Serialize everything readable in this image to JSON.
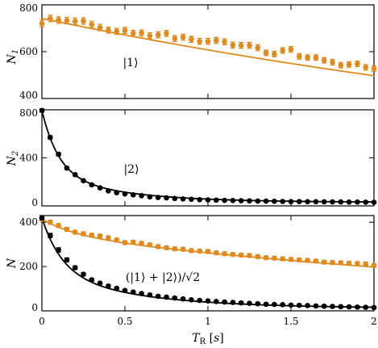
{
  "chart_data": [
    {
      "type": "scatter",
      "panel": "top",
      "ylabel": "N1",
      "ylim": [
        400,
        800
      ],
      "yticks": [
        400,
        600,
        800
      ],
      "xlim": [
        0,
        2
      ],
      "annotation": "|1⟩",
      "series": [
        {
          "color": "#E08A1E",
          "marker": "filled-circle",
          "errorbars": true,
          "x": [
            0,
            0.05,
            0.1,
            0.15,
            0.2,
            0.25,
            0.3,
            0.35,
            0.4,
            0.45,
            0.5,
            0.55,
            0.6,
            0.65,
            0.7,
            0.75,
            0.8,
            0.85,
            0.9,
            0.95,
            1.0,
            1.05,
            1.1,
            1.15,
            1.2,
            1.25,
            1.3,
            1.35,
            1.4,
            1.45,
            1.5,
            1.55,
            1.6,
            1.65,
            1.7,
            1.75,
            1.8,
            1.85,
            1.9,
            1.95,
            2.0
          ],
          "y": [
            720,
            742,
            735,
            733,
            730,
            731,
            716,
            703,
            692,
            687,
            691,
            678,
            680,
            668,
            672,
            678,
            656,
            662,
            653,
            644,
            644,
            648,
            642,
            628,
            627,
            627,
            617,
            595,
            590,
            605,
            610,
            580,
            575,
            575,
            563,
            555,
            542,
            545,
            548,
            533,
            528
          ],
          "yerr": [
            14,
            14,
            14,
            14,
            14,
            14,
            14,
            14,
            13,
            13,
            13,
            13,
            13,
            13,
            13,
            13,
            13,
            13,
            13,
            13,
            13,
            13,
            13,
            13,
            13,
            13,
            13,
            12,
            12,
            12,
            12,
            12,
            12,
            12,
            12,
            12,
            12,
            12,
            12,
            12,
            12
          ]
        }
      ],
      "fit": {
        "color": "#E08A1E",
        "model": "exponential",
        "y0": 742,
        "tau": 5.0
      }
    },
    {
      "type": "scatter",
      "panel": "middle",
      "ylabel": "N2",
      "ylim": [
        0,
        800
      ],
      "yticks": [
        0,
        400,
        800
      ],
      "xlim": [
        0,
        2
      ],
      "annotation": "|2⟩",
      "series": [
        {
          "color": "#000000",
          "marker": "filled-circle",
          "errorbars": true,
          "x": [
            0,
            0.05,
            0.1,
            0.15,
            0.2,
            0.25,
            0.3,
            0.35,
            0.4,
            0.45,
            0.5,
            0.55,
            0.6,
            0.65,
            0.7,
            0.75,
            0.8,
            0.85,
            0.9,
            0.95,
            1.0,
            1.05,
            1.1,
            1.15,
            1.2,
            1.25,
            1.3,
            1.35,
            1.4,
            1.45,
            1.5,
            1.55,
            1.6,
            1.65,
            1.7,
            1.75,
            1.8,
            1.85,
            1.9,
            1.95,
            2.0
          ],
          "y": [
            795,
            570,
            430,
            315,
            260,
            210,
            175,
            150,
            125,
            110,
            100,
            92,
            85,
            75,
            70,
            67,
            62,
            58,
            55,
            52,
            50,
            48,
            46,
            45,
            43,
            42,
            40,
            40,
            38,
            37,
            36,
            36,
            35,
            35,
            34,
            33,
            33,
            32,
            32,
            31,
            30
          ],
          "yerr": [
            14,
            14,
            14,
            12,
            10,
            9,
            8,
            7,
            7,
            6,
            6,
            6,
            6,
            5,
            5,
            5,
            5,
            5,
            5,
            5,
            5,
            5,
            5,
            5,
            5,
            5,
            5,
            5,
            5,
            5,
            5,
            5,
            5,
            5,
            5,
            5,
            5,
            5,
            5,
            5,
            5
          ]
        }
      ],
      "fit": {
        "color": "#000000",
        "model": "bi-exponential",
        "c": 30,
        "a1": 520,
        "t1": 0.1,
        "a2": 245,
        "t2": 0.45
      }
    },
    {
      "type": "scatter",
      "panel": "bottom",
      "ylabel": "N",
      "ylim": [
        0,
        430
      ],
      "yticks": [
        0,
        200,
        400
      ],
      "xlim": [
        0,
        2
      ],
      "xlabel": "TR [s]",
      "xticks": [
        0,
        0.5,
        1,
        1.5,
        2
      ],
      "annotation": "(|1⟩ + |2⟩)/√2",
      "series": [
        {
          "color": "#E08A1E",
          "marker": "filled-circle",
          "errorbars": true,
          "x": [
            0,
            0.05,
            0.1,
            0.15,
            0.2,
            0.25,
            0.3,
            0.35,
            0.4,
            0.45,
            0.5,
            0.55,
            0.6,
            0.65,
            0.7,
            0.75,
            0.8,
            0.85,
            0.9,
            0.95,
            1.0,
            1.05,
            1.1,
            1.15,
            1.2,
            1.25,
            1.3,
            1.35,
            1.4,
            1.45,
            1.5,
            1.55,
            1.6,
            1.65,
            1.7,
            1.75,
            1.8,
            1.85,
            1.9,
            1.95,
            2.0
          ],
          "y": [
            415,
            400,
            385,
            368,
            355,
            348,
            342,
            338,
            330,
            320,
            308,
            310,
            305,
            298,
            290,
            285,
            280,
            278,
            272,
            270,
            268,
            262,
            258,
            255,
            252,
            250,
            245,
            240,
            238,
            235,
            232,
            230,
            228,
            225,
            220,
            218,
            217,
            215,
            214,
            212,
            205
          ],
          "yerr": [
            10,
            10,
            9,
            9,
            9,
            9,
            8,
            8,
            8,
            8,
            8,
            8,
            8,
            8,
            8,
            8,
            8,
            8,
            8,
            8,
            8,
            8,
            8,
            8,
            8,
            8,
            8,
            8,
            8,
            8,
            8,
            8,
            8,
            8,
            8,
            8,
            8,
            8,
            8,
            8,
            8
          ]
        },
        {
          "color": "#000000",
          "marker": "filled-circle",
          "errorbars": true,
          "x": [
            0,
            0.05,
            0.1,
            0.15,
            0.2,
            0.25,
            0.3,
            0.35,
            0.4,
            0.45,
            0.5,
            0.55,
            0.6,
            0.65,
            0.7,
            0.75,
            0.8,
            0.85,
            0.9,
            0.95,
            1.0,
            1.05,
            1.1,
            1.15,
            1.2,
            1.25,
            1.3,
            1.35,
            1.4,
            1.45,
            1.5,
            1.55,
            1.6,
            1.65,
            1.7,
            1.75,
            1.8,
            1.85,
            1.9,
            1.95,
            2.0
          ],
          "y": [
            420,
            340,
            275,
            230,
            195,
            165,
            140,
            125,
            112,
            102,
            92,
            85,
            78,
            72,
            66,
            62,
            58,
            54,
            50,
            47,
            45,
            42,
            40,
            38,
            36,
            34,
            32,
            30,
            29,
            28,
            26,
            25,
            24,
            22,
            21,
            20,
            19,
            18,
            17,
            16,
            15
          ],
          "yerr": [
            10,
            10,
            10,
            9,
            8,
            7,
            6,
            6,
            5,
            5,
            5,
            5,
            5,
            5,
            5,
            5,
            5,
            5,
            5,
            5,
            5,
            5,
            5,
            5,
            5,
            5,
            5,
            5,
            5,
            5,
            5,
            5,
            5,
            5,
            5,
            5,
            5,
            5,
            5,
            5,
            5
          ]
        }
      ],
      "fits": [
        {
          "color": "#E08A1E",
          "model": "bi-exponential",
          "c": 0,
          "a1": 70,
          "t1": 0.2,
          "a2": 345,
          "t2": 3.6
        },
        {
          "color": "#000000",
          "model": "bi-exponential",
          "c": 12,
          "a1": 240,
          "t1": 0.12,
          "a2": 168,
          "t2": 0.55
        }
      ]
    }
  ]
}
